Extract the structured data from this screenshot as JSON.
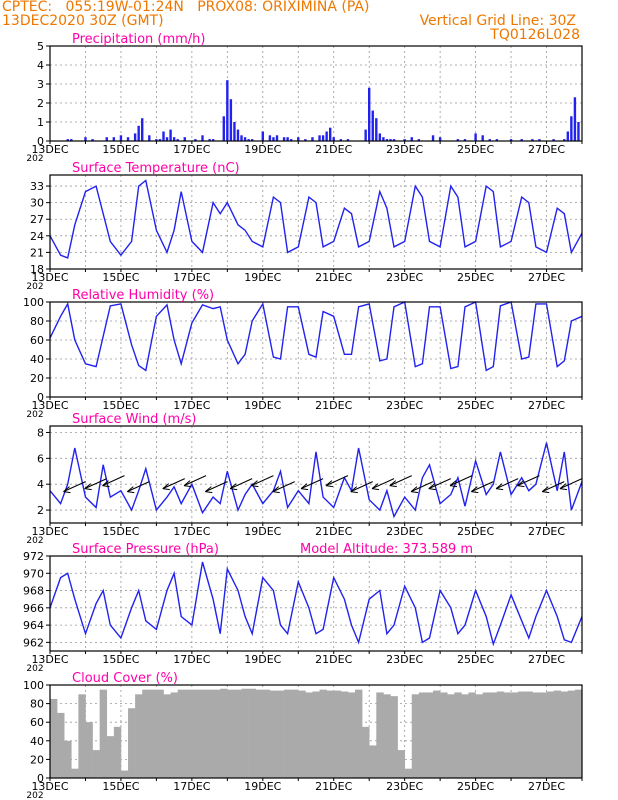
{
  "header": {
    "left_line1": "CPTEC:   055:19W-01:24N   PROX08: ORIXIMINA (PA)",
    "left_line2": "13DEC2020 30Z (GMT)",
    "right_line1": "Vertical Grid Line: 30Z",
    "right_line2": "TQ0126L028"
  },
  "colors": {
    "header": "#ee7700",
    "title": "#ff00aa",
    "series": "#2222ee",
    "cloud": "#aaaaaa",
    "wind_arrow": "#000000"
  },
  "year_stub": "202",
  "chart_data": [
    {
      "type": "bar",
      "title": "Precipitation (mm/h)",
      "ylim": [
        0,
        5
      ],
      "yticks": [
        0,
        1,
        2,
        3,
        4,
        5
      ],
      "xticks": [
        "13DEC",
        "15DEC",
        "17DEC",
        "19DEC",
        "21DEC",
        "23DEC",
        "25DEC",
        "27DEC"
      ],
      "xlim": [
        0,
        15
      ],
      "x": [
        0.5,
        0.6,
        1.0,
        1.2,
        1.6,
        1.8,
        2.0,
        2.2,
        2.4,
        2.5,
        2.6,
        2.8,
        3.0,
        3.1,
        3.2,
        3.3,
        3.4,
        3.5,
        3.6,
        3.8,
        4.1,
        4.3,
        4.5,
        4.6,
        4.9,
        5.0,
        5.1,
        5.2,
        5.3,
        5.4,
        5.5,
        5.6,
        5.7,
        6.0,
        6.2,
        6.3,
        6.4,
        6.6,
        6.7,
        6.8,
        7.0,
        7.2,
        7.4,
        7.6,
        7.7,
        7.8,
        7.9,
        8.0,
        8.2,
        8.4,
        8.9,
        9.0,
        9.1,
        9.2,
        9.3,
        9.4,
        9.5,
        9.6,
        9.7,
        10.0,
        10.2,
        10.4,
        10.8,
        11.0,
        11.5,
        11.7,
        12.0,
        12.2,
        12.4,
        12.6,
        13.0,
        13.3,
        13.6,
        13.8,
        14.2,
        14.5,
        14.6,
        14.7,
        14.8,
        14.9
      ],
      "values": [
        0.1,
        0.1,
        0.2,
        0.1,
        0.2,
        0.2,
        0.3,
        0.2,
        0.4,
        0.8,
        1.2,
        0.3,
        0.1,
        0.1,
        0.5,
        0.2,
        0.6,
        0.2,
        0.1,
        0.2,
        0.1,
        0.3,
        0.1,
        0.1,
        1.3,
        3.2,
        2.2,
        1.0,
        0.6,
        0.3,
        0.2,
        0.1,
        0.1,
        0.5,
        0.3,
        0.2,
        0.3,
        0.2,
        0.2,
        0.1,
        0.2,
        0.1,
        0.2,
        0.3,
        0.3,
        0.5,
        0.7,
        0.2,
        0.1,
        0.1,
        0.6,
        2.8,
        1.6,
        1.2,
        0.4,
        0.2,
        0.1,
        0.1,
        0.1,
        0.1,
        0.2,
        0.1,
        0.3,
        0.2,
        0.1,
        0.1,
        0.4,
        0.3,
        0.1,
        0.1,
        0.1,
        0.1,
        0.1,
        0.1,
        0.1,
        0.1,
        0.5,
        1.3,
        2.3,
        1.0
      ]
    },
    {
      "type": "line",
      "title": "Surface Temperature (nC)",
      "ylim": [
        18,
        35
      ],
      "yticks": [
        18,
        21,
        24,
        27,
        30,
        33
      ],
      "xticks": [
        "13DEC",
        "15DEC",
        "17DEC",
        "19DEC",
        "21DEC",
        "23DEC",
        "25DEC",
        "27DEC"
      ],
      "xlim": [
        0,
        15
      ],
      "x": [
        0,
        0.3,
        0.5,
        0.7,
        1.0,
        1.3,
        1.7,
        2.0,
        2.3,
        2.5,
        2.7,
        3.0,
        3.3,
        3.5,
        3.7,
        4.0,
        4.3,
        4.6,
        4.8,
        5.0,
        5.3,
        5.5,
        5.7,
        6.0,
        6.3,
        6.5,
        6.7,
        7.0,
        7.3,
        7.5,
        7.7,
        8.0,
        8.3,
        8.5,
        8.7,
        9.0,
        9.3,
        9.5,
        9.7,
        10.0,
        10.3,
        10.5,
        10.7,
        11.0,
        11.3,
        11.5,
        11.7,
        12.0,
        12.3,
        12.5,
        12.7,
        13.0,
        13.3,
        13.5,
        13.7,
        14.0,
        14.3,
        14.5,
        14.7,
        15.0
      ],
      "values": [
        24,
        20.5,
        20,
        26,
        32,
        33,
        23,
        20.5,
        23,
        33,
        34,
        25,
        21,
        25,
        32,
        23,
        21,
        30,
        28,
        30,
        26,
        25,
        23,
        22,
        31,
        30,
        21,
        22,
        31,
        30,
        22,
        23,
        29,
        28,
        22,
        23,
        32,
        29,
        22,
        23,
        33,
        31,
        23,
        22,
        33,
        31,
        22,
        23,
        33,
        32,
        22,
        23,
        31,
        30,
        22,
        21,
        29,
        28,
        21,
        24.5
      ]
    },
    {
      "type": "line",
      "title": "Relative Humidity (%)",
      "ylim": [
        0,
        100
      ],
      "yticks": [
        0,
        20,
        40,
        60,
        80,
        100
      ],
      "xticks": [
        "13DEC",
        "15DEC",
        "17DEC",
        "19DEC",
        "21DEC",
        "23DEC",
        "25DEC",
        "27DEC"
      ],
      "xlim": [
        0,
        15
      ],
      "x": [
        0,
        0.3,
        0.5,
        0.7,
        1.0,
        1.3,
        1.7,
        2.0,
        2.3,
        2.5,
        2.7,
        3.0,
        3.3,
        3.5,
        3.7,
        4.0,
        4.3,
        4.6,
        4.8,
        5.0,
        5.3,
        5.5,
        5.7,
        6.0,
        6.3,
        6.5,
        6.7,
        7.0,
        7.3,
        7.5,
        7.7,
        8.0,
        8.3,
        8.5,
        8.7,
        9.0,
        9.3,
        9.5,
        9.7,
        10.0,
        10.3,
        10.5,
        10.7,
        11.0,
        11.3,
        11.5,
        11.7,
        12.0,
        12.3,
        12.5,
        12.7,
        13.0,
        13.3,
        13.5,
        13.7,
        14.0,
        14.3,
        14.5,
        14.7,
        15.0
      ],
      "values": [
        62,
        85,
        98,
        60,
        35,
        32,
        96,
        98,
        55,
        33,
        28,
        85,
        97,
        60,
        35,
        78,
        97,
        93,
        95,
        60,
        35,
        45,
        80,
        98,
        42,
        40,
        95,
        95,
        45,
        42,
        90,
        85,
        45,
        45,
        95,
        98,
        38,
        40,
        95,
        100,
        32,
        35,
        95,
        95,
        30,
        32,
        95,
        100,
        28,
        32,
        96,
        100,
        40,
        42,
        98,
        98,
        32,
        38,
        80,
        85
      ]
    },
    {
      "type": "line",
      "title": "Surface Wind (m/s)",
      "ylim": [
        1,
        8.5
      ],
      "yticks": [
        2,
        4,
        6,
        8
      ],
      "xticks": [
        "13DEC",
        "15DEC",
        "17DEC",
        "19DEC",
        "21DEC",
        "23DEC",
        "25DEC",
        "27DEC"
      ],
      "xlim": [
        0,
        15
      ],
      "x": [
        0,
        0.3,
        0.5,
        0.7,
        1.0,
        1.3,
        1.5,
        1.7,
        2.0,
        2.3,
        2.5,
        2.7,
        3.0,
        3.3,
        3.5,
        3.7,
        4.0,
        4.3,
        4.6,
        4.8,
        5.0,
        5.3,
        5.5,
        5.7,
        6.0,
        6.3,
        6.5,
        6.7,
        7.0,
        7.3,
        7.5,
        7.7,
        8.0,
        8.3,
        8.5,
        8.7,
        9.0,
        9.3,
        9.5,
        9.7,
        10.0,
        10.3,
        10.5,
        10.7,
        11.0,
        11.3,
        11.5,
        11.7,
        12.0,
        12.3,
        12.5,
        12.7,
        13.0,
        13.3,
        13.5,
        13.7,
        14.0,
        14.3,
        14.5,
        14.7,
        15.0
      ],
      "values": [
        3.5,
        2.5,
        4,
        6.8,
        3,
        2.2,
        5.5,
        3,
        3.5,
        2,
        3.5,
        5.2,
        2,
        3,
        3.8,
        2.5,
        4,
        1.8,
        3,
        2.5,
        5,
        2,
        3.2,
        4,
        2.5,
        3.5,
        5,
        2.2,
        3.5,
        2.5,
        6.5,
        3,
        2.2,
        4.5,
        3.5,
        6.8,
        2.8,
        2,
        3.5,
        1.5,
        3,
        2,
        4.5,
        5.5,
        2.5,
        3.2,
        4.5,
        2.3,
        5.8,
        3.2,
        4,
        6.5,
        3.2,
        4.5,
        3.5,
        4,
        7.2,
        3.5,
        6.5,
        2,
        4.2
      ],
      "arrow_x": [
        1.0,
        1.6,
        2.1,
        2.8,
        3.8,
        4.4,
        5.0,
        5.7,
        6.3,
        6.9,
        7.7,
        8.4,
        9.1,
        9.7,
        10.2,
        10.8,
        11.3,
        11.9,
        12.5,
        13.2,
        13.8,
        14.5,
        15.0
      ],
      "arrow_count": 23
    },
    {
      "type": "line",
      "title": "Surface Pressure (hPa)",
      "annotation": "Model Altitude: 373.589  m",
      "ylim": [
        961,
        972
      ],
      "yticks": [
        962,
        964,
        966,
        968,
        970,
        972
      ],
      "xticks": [
        "13DEC",
        "15DEC",
        "17DEC",
        "19DEC",
        "21DEC",
        "23DEC",
        "25DEC",
        "27DEC"
      ],
      "xlim": [
        0,
        15
      ],
      "x": [
        0,
        0.3,
        0.5,
        0.7,
        1.0,
        1.3,
        1.5,
        1.7,
        2.0,
        2.3,
        2.5,
        2.7,
        3.0,
        3.3,
        3.5,
        3.7,
        4.0,
        4.3,
        4.6,
        4.8,
        5.0,
        5.3,
        5.5,
        5.7,
        6.0,
        6.3,
        6.5,
        6.7,
        7.0,
        7.3,
        7.5,
        7.7,
        8.0,
        8.3,
        8.5,
        8.7,
        9.0,
        9.3,
        9.5,
        9.7,
        10.0,
        10.3,
        10.5,
        10.7,
        11.0,
        11.3,
        11.5,
        11.7,
        12.0,
        12.3,
        12.5,
        12.7,
        13.0,
        13.3,
        13.5,
        13.7,
        14.0,
        14.3,
        14.5,
        14.7,
        15.0
      ],
      "values": [
        966,
        969.5,
        970,
        967,
        963,
        966.5,
        968,
        964,
        962.5,
        966,
        968,
        964.5,
        963.5,
        968,
        970,
        965,
        964,
        971.3,
        967,
        963,
        970.5,
        968,
        965,
        963,
        969.5,
        968,
        964,
        963,
        969,
        966,
        963,
        963.5,
        969.5,
        967,
        964,
        962,
        967,
        968,
        963,
        964,
        968.5,
        966,
        962,
        962.5,
        968,
        966,
        963,
        964,
        968,
        965,
        961.8,
        964,
        967.5,
        964.5,
        962.5,
        965,
        968,
        965,
        962.3,
        962,
        965
      ]
    },
    {
      "type": "bar",
      "title": "Cloud Cover (%)",
      "ylim": [
        0,
        100
      ],
      "yticks": [
        0,
        20,
        40,
        60,
        80,
        100
      ],
      "xticks": [
        "13DEC",
        "15DEC",
        "17DEC",
        "19DEC",
        "21DEC",
        "23DEC",
        "25DEC",
        "27DEC"
      ],
      "xlim": [
        0,
        15
      ],
      "x": [
        0.2,
        0.4,
        0.6,
        0.8,
        1.0,
        1.2,
        1.4,
        1.6,
        1.8,
        2.0,
        2.2,
        2.4,
        2.6,
        2.8,
        3.0,
        3.2,
        3.4,
        3.6,
        3.8,
        4.0,
        4.2,
        4.4,
        4.6,
        4.8,
        5.0,
        5.2,
        5.4,
        5.6,
        5.8,
        6.0,
        6.2,
        6.4,
        6.6,
        6.8,
        7.0,
        7.2,
        7.4,
        7.6,
        7.8,
        8.0,
        8.2,
        8.4,
        8.6,
        8.8,
        9.0,
        9.2,
        9.4,
        9.6,
        9.8,
        10.0,
        10.2,
        10.4,
        10.6,
        10.8,
        11.0,
        11.2,
        11.4,
        11.6,
        11.8,
        12.0,
        12.2,
        12.4,
        12.6,
        12.8,
        13.0,
        13.2,
        13.4,
        13.6,
        13.8,
        14.0,
        14.2,
        14.4,
        14.6,
        14.8,
        15.0
      ],
      "values": [
        85,
        70,
        40,
        10,
        90,
        60,
        30,
        95,
        45,
        55,
        8,
        75,
        90,
        95,
        95,
        95,
        90,
        92,
        95,
        95,
        95,
        95,
        95,
        95,
        96,
        95,
        95,
        96,
        96,
        95,
        95,
        94,
        94,
        95,
        95,
        94,
        92,
        93,
        95,
        94,
        94,
        93,
        92,
        95,
        55,
        35,
        92,
        90,
        88,
        30,
        10,
        90,
        92,
        92,
        94,
        92,
        90,
        92,
        90,
        92,
        90,
        92,
        92,
        93,
        92,
        92,
        93,
        93,
        92,
        92,
        93,
        94,
        93,
        94,
        95
      ]
    }
  ]
}
